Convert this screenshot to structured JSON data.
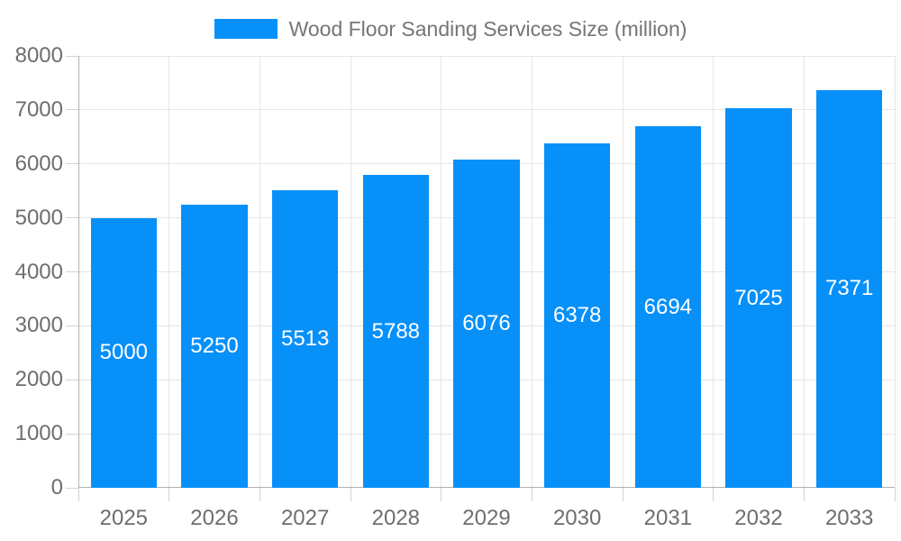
{
  "chart_data": {
    "type": "bar",
    "title": "Wood Floor Sanding Services Size (million)",
    "legend": [
      "Wood Floor Sanding Services Size (million)"
    ],
    "legend_position": "top",
    "categories": [
      "2025",
      "2026",
      "2027",
      "2028",
      "2029",
      "2030",
      "2031",
      "2032",
      "2033"
    ],
    "series": [
      {
        "name": "Wood Floor Sanding Services Size (million)",
        "values": [
          5000,
          5250,
          5513,
          5788,
          6076,
          6378,
          6694,
          7025,
          7371
        ]
      }
    ],
    "bar_value_labels": [
      "5000",
      "5250",
      "5513",
      "5788",
      "6076",
      "6378",
      "6694",
      "7025",
      "7371"
    ],
    "xlabel": "",
    "ylabel": "",
    "ylim": [
      0,
      8000
    ],
    "ytick_step": 1000,
    "yticks": [
      0,
      1000,
      2000,
      3000,
      4000,
      5000,
      6000,
      7000,
      8000
    ],
    "grid": true,
    "colors": {
      "bar": "#0890f9",
      "bar_label": "#ffffff",
      "axis_text": "#6e6e6e",
      "legend_text": "#757575",
      "gridline": "#e5e5e5",
      "axis_line": "#b1b1b1",
      "tick": "#d2d2d2",
      "background": "#ffffff"
    }
  }
}
